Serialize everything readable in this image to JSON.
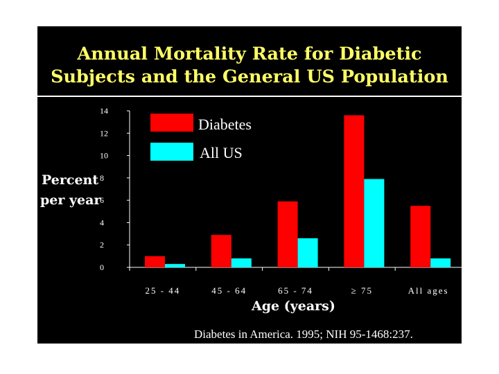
{
  "colors": {
    "background": "#000000",
    "title": "#FFFF66",
    "text": "#FFFFFF",
    "diabetes": "#FF0000",
    "all_us": "#00FFFF"
  },
  "chart_data": {
    "type": "bar",
    "title": "Annual Mortality Rate for Diabetic Subjects and the General US Population",
    "title_lines": [
      "Annual Mortality Rate for Diabetic",
      "Subjects and the General US Population"
    ],
    "ylabel_lines": [
      "Percent",
      "per year"
    ],
    "xlabel": "Age (years)",
    "categories": [
      "25 - 44",
      "45 - 64",
      "65 - 74",
      "≥ 75",
      "All ages"
    ],
    "series": [
      {
        "name": "Diabetes",
        "values": [
          1.0,
          2.9,
          5.9,
          13.6,
          5.5
        ]
      },
      {
        "name": "All US",
        "values": [
          0.3,
          0.8,
          2.6,
          7.9,
          0.8
        ]
      }
    ],
    "ylim": [
      0,
      14
    ],
    "yticks": [
      0,
      2,
      4,
      6,
      8,
      10,
      12,
      14
    ],
    "legend_position": "top-left",
    "grid": false,
    "source": "Diabetes in America. 1995; NIH 95-1468:237."
  }
}
